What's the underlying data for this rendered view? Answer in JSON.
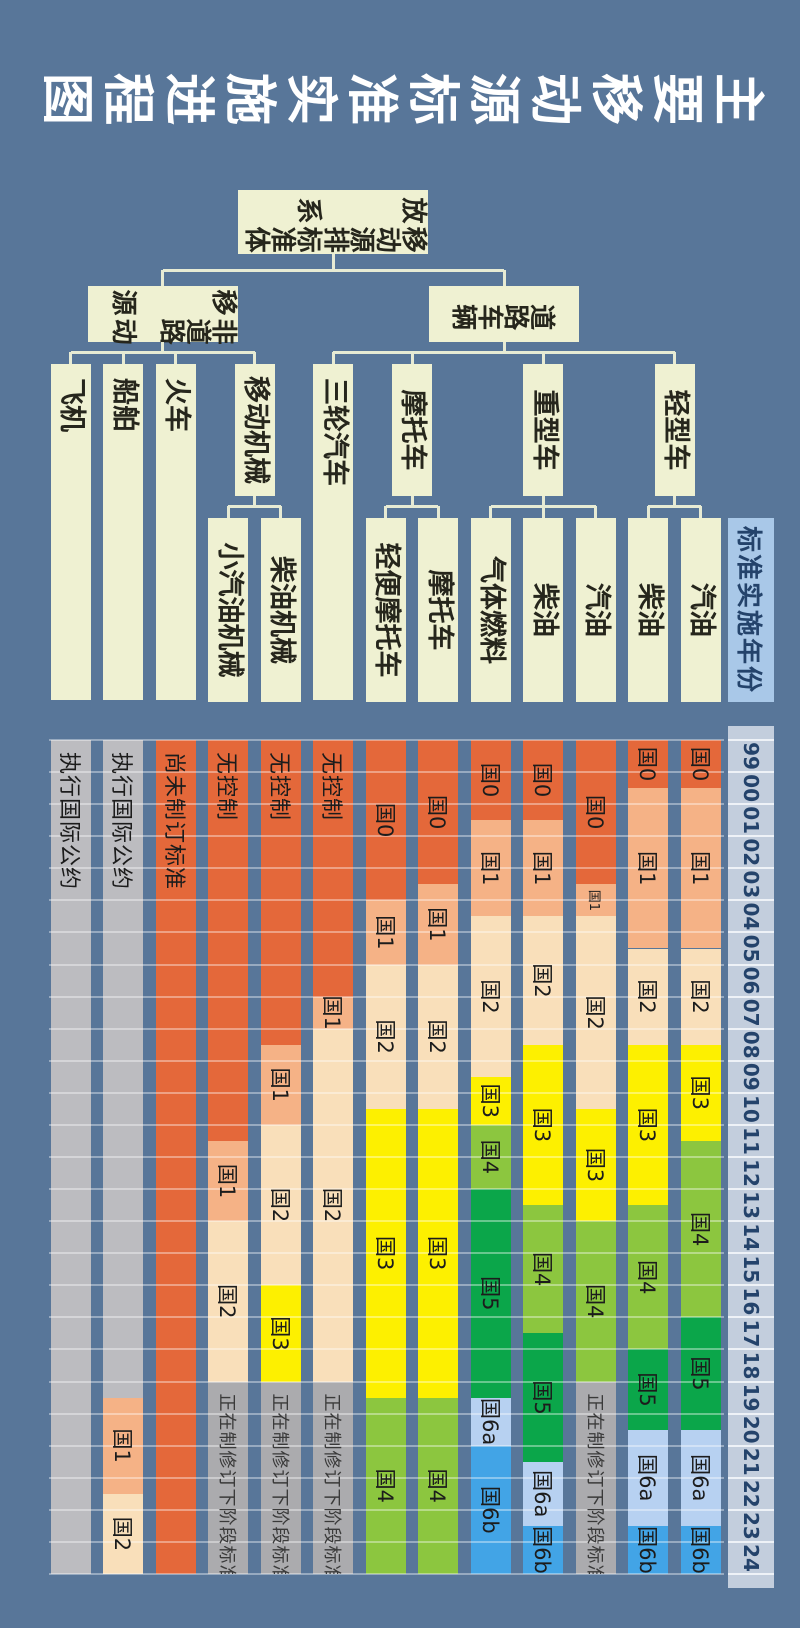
{
  "title": "主要移动源标准实施进程图",
  "colors": {
    "background": "#587699",
    "title_text": "#ffffff",
    "node_box": "#eff1d2",
    "node_text": "#26261c",
    "connector": "#e7ebd4",
    "grid_line": "rgba(255,255,255,0.38)",
    "bar_label": "#1c1c1c",
    "axis_header_bg": "#a9c8e8",
    "axis_strip_bg": "#c3cedd",
    "axis_text": "#24436b",
    "axis_separator": "#eef2f7",
    "stages": {
      "G0": "#e4683a",
      "G1": "#f5b286",
      "G2": "#f9dfba",
      "G3": "#fdf000",
      "G4": "#8cc63f",
      "G5": "#0ba64a",
      "G6a": "#b7d1f1",
      "G6b": "#42a4e6",
      "gray_intl": "#bcbcc0",
      "gray_draft": "#ababae",
      "orange_none": "#e4683a"
    }
  },
  "tree": {
    "root": {
      "lines": [
        "移动源排放",
        "标准体系"
      ]
    },
    "branches": [
      {
        "name": "road-vehicles",
        "lines": [
          "道路",
          "车辆"
        ],
        "children": [
          {
            "label": "轻型车",
            "leaf_rows": [
              0,
              1
            ]
          },
          {
            "label": "重型车",
            "leaf_rows": [
              2,
              3,
              4
            ]
          },
          {
            "label": "摩托车",
            "leaf_rows": [
              5,
              6
            ]
          },
          {
            "label": "三轮汽车",
            "row": 7,
            "long": true
          }
        ]
      },
      {
        "name": "non-road-mobile-sources",
        "lines": [
          "非道路移",
          "动源"
        ],
        "children": [
          {
            "label": "移动机械",
            "leaf_rows": [
              8,
              9
            ]
          },
          {
            "label": "火车",
            "row": 10,
            "long": true
          },
          {
            "label": "船舶",
            "row": 11,
            "long": true
          },
          {
            "label": "飞机",
            "row": 12,
            "long": true
          }
        ]
      }
    ]
  },
  "chart_data": {
    "type": "bar",
    "variant": "horizontal-stacked-timeline (gantt)",
    "title": "主要移动源标准实施进程图",
    "x_axis": {
      "header": "标准实施年份",
      "years": [
        "99",
        "00",
        "01",
        "02",
        "03",
        "04",
        "05",
        "06",
        "07",
        "08",
        "09",
        "10",
        "11",
        "12",
        "13",
        "14",
        "15",
        "16",
        "17",
        "18",
        "19",
        "20",
        "21",
        "22",
        "23",
        "24"
      ],
      "start": 1999,
      "end": 2025,
      "grid": true
    },
    "rows": [
      {
        "group": "轻型车",
        "leaf": "汽油",
        "segments": [
          {
            "label": "国0",
            "stage": "G0",
            "start": 1999,
            "end": 2000.5
          },
          {
            "label": "国1",
            "stage": "G1",
            "start": 2000.5,
            "end": 2005.5
          },
          {
            "label": "国2",
            "stage": "G2",
            "start": 2005.5,
            "end": 2008.5
          },
          {
            "label": "国3",
            "stage": "G3",
            "start": 2008.5,
            "end": 2011.5
          },
          {
            "label": "国4",
            "stage": "G4",
            "start": 2011.5,
            "end": 2017
          },
          {
            "label": "国5",
            "stage": "G5",
            "start": 2017,
            "end": 2020.5
          },
          {
            "label": "国6a",
            "stage": "G6a",
            "start": 2020.5,
            "end": 2023.5
          },
          {
            "label": "国6b",
            "stage": "G6b",
            "start": 2023.5,
            "end": 2025
          }
        ]
      },
      {
        "group": "轻型车",
        "leaf": "柴油",
        "segments": [
          {
            "label": "国0",
            "stage": "G0",
            "start": 1999,
            "end": 2000.5
          },
          {
            "label": "国1",
            "stage": "G1",
            "start": 2000.5,
            "end": 2005.5
          },
          {
            "label": "国2",
            "stage": "G2",
            "start": 2005.5,
            "end": 2008.5
          },
          {
            "label": "国3",
            "stage": "G3",
            "start": 2008.5,
            "end": 2013.5
          },
          {
            "label": "国4",
            "stage": "G4",
            "start": 2013.5,
            "end": 2018
          },
          {
            "label": "国5",
            "stage": "G5",
            "start": 2018,
            "end": 2020.5
          },
          {
            "label": "国6a",
            "stage": "G6a",
            "start": 2020.5,
            "end": 2023.5
          },
          {
            "label": "国6b",
            "stage": "G6b",
            "start": 2023.5,
            "end": 2025
          }
        ]
      },
      {
        "group": "重型车",
        "leaf": "汽油",
        "segments": [
          {
            "label": "国0",
            "stage": "G0",
            "start": 1999,
            "end": 2003.5
          },
          {
            "label": "国1",
            "stage": "G1",
            "start": 2003.5,
            "end": 2004.5,
            "small": true
          },
          {
            "label": "国2",
            "stage": "G2",
            "start": 2004.5,
            "end": 2010.5
          },
          {
            "label": "国3",
            "stage": "G3",
            "start": 2010.5,
            "end": 2014
          },
          {
            "label": "国4",
            "stage": "G4",
            "start": 2014,
            "end": 2019
          },
          {
            "label": "正在制修订下阶段标准",
            "stage": "gray_draft",
            "start": 2019,
            "end": 2025,
            "align": "start",
            "longtext": true
          }
        ]
      },
      {
        "group": "重型车",
        "leaf": "柴油",
        "segments": [
          {
            "label": "国0",
            "stage": "G0",
            "start": 1999,
            "end": 2001.5
          },
          {
            "label": "国1",
            "stage": "G1",
            "start": 2001.5,
            "end": 2004.5
          },
          {
            "label": "国2",
            "stage": "G2",
            "start": 2004.5,
            "end": 2008.5
          },
          {
            "label": "国3",
            "stage": "G3",
            "start": 2008.5,
            "end": 2013.5
          },
          {
            "label": "国4",
            "stage": "G4",
            "start": 2013.5,
            "end": 2017.5
          },
          {
            "label": "国5",
            "stage": "G5",
            "start": 2017.5,
            "end": 2021.5
          },
          {
            "label": "国6a",
            "stage": "G6a",
            "start": 2021.5,
            "end": 2023.5
          },
          {
            "label": "国6b",
            "stage": "G6b",
            "start": 2023.5,
            "end": 2025
          }
        ]
      },
      {
        "group": "重型车",
        "leaf": "气体燃料",
        "segments": [
          {
            "label": "国0",
            "stage": "G0",
            "start": 1999,
            "end": 2001.5
          },
          {
            "label": "国1",
            "stage": "G1",
            "start": 2001.5,
            "end": 2004.5
          },
          {
            "label": "国2",
            "stage": "G2",
            "start": 2004.5,
            "end": 2009.5
          },
          {
            "label": "国3",
            "stage": "G3",
            "start": 2009.5,
            "end": 2011
          },
          {
            "label": "国4",
            "stage": "G4",
            "start": 2011,
            "end": 2013
          },
          {
            "label": "国5",
            "stage": "G5",
            "start": 2013,
            "end": 2019.5
          },
          {
            "label": "国6a",
            "stage": "G6a",
            "start": 2019.5,
            "end": 2021
          },
          {
            "label": "国6b",
            "stage": "G6b",
            "start": 2021,
            "end": 2025
          }
        ]
      },
      {
        "group": "摩托车",
        "leaf": "摩托车",
        "segments": [
          {
            "label": "国0",
            "stage": "G0",
            "start": 1999,
            "end": 2003.5
          },
          {
            "label": "国1",
            "stage": "G1",
            "start": 2003.5,
            "end": 2006
          },
          {
            "label": "国2",
            "stage": "G2",
            "start": 2006,
            "end": 2010.5
          },
          {
            "label": "国3",
            "stage": "G3",
            "start": 2010.5,
            "end": 2019.5
          },
          {
            "label": "国4",
            "stage": "G4",
            "start": 2019.5,
            "end": 2025
          }
        ]
      },
      {
        "group": "摩托车",
        "leaf": "轻便摩托车",
        "segments": [
          {
            "label": "国0",
            "stage": "G0",
            "start": 1999,
            "end": 2004
          },
          {
            "label": "国1",
            "stage": "G1",
            "start": 2004,
            "end": 2006
          },
          {
            "label": "国2",
            "stage": "G2",
            "start": 2006,
            "end": 2010.5
          },
          {
            "label": "国3",
            "stage": "G3",
            "start": 2010.5,
            "end": 2019.5
          },
          {
            "label": "国4",
            "stage": "G4",
            "start": 2019.5,
            "end": 2025
          }
        ]
      },
      {
        "group": "三轮汽车",
        "leaf": null,
        "segments": [
          {
            "label": "无控制",
            "stage": "orange_none",
            "start": 1999,
            "end": 2007,
            "align": "start",
            "longtext": true
          },
          {
            "label": "国1",
            "stage": "G1",
            "start": 2007,
            "end": 2008
          },
          {
            "label": "国2",
            "stage": "G2",
            "start": 2008,
            "end": 2019
          },
          {
            "label": "正在制修订下阶段标准",
            "stage": "gray_draft",
            "start": 2019,
            "end": 2025,
            "align": "start",
            "longtext": true
          }
        ]
      },
      {
        "group": "移动机械",
        "leaf": "柴油机械",
        "segments": [
          {
            "label": "无控制",
            "stage": "orange_none",
            "start": 1999,
            "end": 2008.5,
            "align": "start",
            "longtext": true
          },
          {
            "label": "国1",
            "stage": "G1",
            "start": 2008.5,
            "end": 2011
          },
          {
            "label": "国2",
            "stage": "G2",
            "start": 2011,
            "end": 2016
          },
          {
            "label": "国3",
            "stage": "G3",
            "start": 2016,
            "end": 2019
          },
          {
            "label": "正在制修订下阶段标准",
            "stage": "gray_draft",
            "start": 2019,
            "end": 2025,
            "align": "start",
            "longtext": true
          }
        ]
      },
      {
        "group": "移动机械",
        "leaf": "小汽油机械",
        "segments": [
          {
            "label": "无控制",
            "stage": "orange_none",
            "start": 1999,
            "end": 2011.5,
            "align": "start",
            "longtext": true
          },
          {
            "label": "国1",
            "stage": "G1",
            "start": 2011.5,
            "end": 2014
          },
          {
            "label": "国2",
            "stage": "G2",
            "start": 2014,
            "end": 2019
          },
          {
            "label": "正在制修订下阶段标准",
            "stage": "gray_draft",
            "start": 2019,
            "end": 2025,
            "align": "start",
            "longtext": true
          }
        ]
      },
      {
        "group": "火车",
        "leaf": null,
        "segments": [
          {
            "label": "尚未制订标准",
            "stage": "orange_none",
            "start": 1999,
            "end": 2025,
            "align": "start",
            "longtext": true
          }
        ]
      },
      {
        "group": "船舶",
        "leaf": null,
        "segments": [
          {
            "label": "执行国际公约",
            "stage": "gray_intl",
            "start": 1999,
            "end": 2019.5,
            "align": "start",
            "longtext": true
          },
          {
            "label": "国1",
            "stage": "G1",
            "start": 2019.5,
            "end": 2022.5
          },
          {
            "label": "国2",
            "stage": "G2",
            "start": 2022.5,
            "end": 2025
          }
        ]
      },
      {
        "group": "飞机",
        "leaf": null,
        "segments": [
          {
            "label": "执行国际公约",
            "stage": "gray_intl",
            "start": 1999,
            "end": 2025,
            "align": "start",
            "longtext": true
          }
        ]
      }
    ]
  }
}
